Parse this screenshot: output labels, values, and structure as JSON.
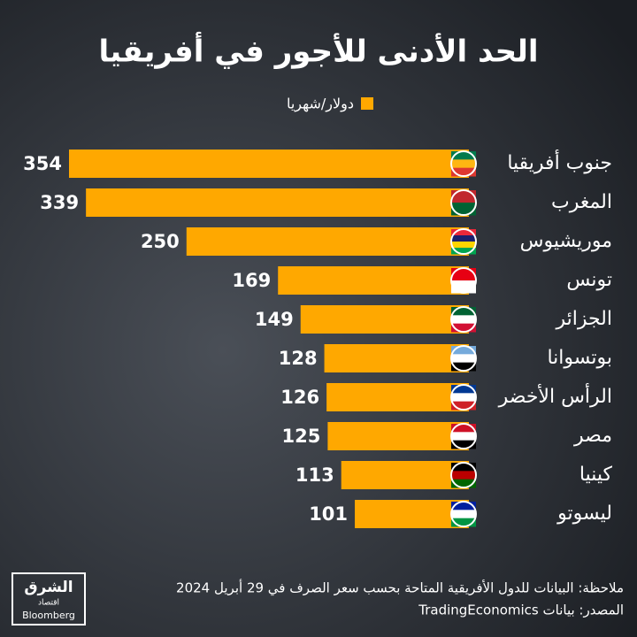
{
  "chart_data": {
    "type": "bar",
    "orientation": "horizontal",
    "title": "الحد الأدنى للأجور في أفريقيا",
    "categories": [
      "جنوب أفريقيا",
      "المغرب",
      "موريشيوس",
      "تونس",
      "الجزائر",
      "بوتسوانا",
      "الرأس الأخضر",
      "مصر",
      "كينيا",
      "ليسوتو"
    ],
    "series": [
      {
        "name": "دولار/شهريا",
        "color": "#ffa800",
        "values": [
          354,
          339,
          250,
          169,
          149,
          128,
          126,
          125,
          113,
          101
        ]
      }
    ]
  },
  "footer": {
    "note": "ملاحظة: البيانات للدول الأفريقية المتاحة بحسب سعر الصرف في 29 أبريل 2024",
    "source": "المصدر: بيانات TradingEconomics"
  },
  "logo": {
    "name": "الشرق",
    "sub": "اقتصاد",
    "partner": "Bloomberg"
  }
}
